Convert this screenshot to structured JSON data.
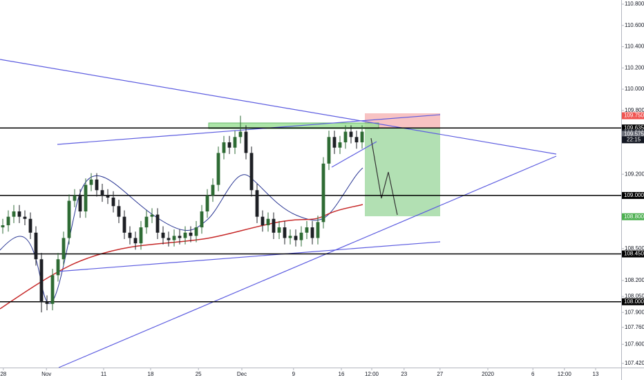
{
  "chart_data": {
    "type": "candlestick",
    "up_color": "#2e6b34",
    "down_color": "#1d1f24",
    "grid": false,
    "xlim": [
      0,
      112.5
    ],
    "ylim": [
      107.381,
      110.839
    ],
    "xticks": [
      {
        "value": 0.6,
        "label": "28"
      },
      {
        "value": 8.4,
        "label": "Nov"
      },
      {
        "value": 18.75,
        "label": "11"
      },
      {
        "value": 27.25,
        "label": "18"
      },
      {
        "value": 35.9,
        "label": "25"
      },
      {
        "value": 43.75,
        "label": "Dec"
      },
      {
        "value": 53.1,
        "label": "9"
      },
      {
        "value": 61.75,
        "label": "16"
      },
      {
        "value": 67.25,
        "label": "12:00"
      },
      {
        "value": 73.1,
        "label": "23"
      },
      {
        "value": 79.6,
        "label": "27"
      },
      {
        "value": 88.25,
        "label": "2020"
      },
      {
        "value": 96.4,
        "label": "6"
      },
      {
        "value": 102.1,
        "label": "12:00"
      },
      {
        "value": 107.75,
        "label": "13"
      }
    ],
    "yticks": [
      {
        "value": 110.8,
        "label": "110.800"
      },
      {
        "value": 110.6,
        "label": "110.600"
      },
      {
        "value": 110.4,
        "label": "110.400"
      },
      {
        "value": 110.2,
        "label": "110.200"
      },
      {
        "value": 110.0,
        "label": "110.000"
      },
      {
        "value": 109.8,
        "label": "109.800"
      },
      {
        "value": 109.2,
        "label": "109.200"
      },
      {
        "value": 108.5,
        "label": "108.500"
      },
      {
        "value": 108.2,
        "label": "108.200"
      },
      {
        "value": 108.05,
        "label": "108.050"
      },
      {
        "value": 107.9,
        "label": "107.900"
      },
      {
        "value": 107.76,
        "label": "107.760"
      },
      {
        "value": 107.6,
        "label": "107.600"
      },
      {
        "value": 107.42,
        "label": "107.420"
      }
    ],
    "price_labels": [
      {
        "value": 109.75,
        "label": "109.750",
        "color": "#ef5350"
      },
      {
        "value": 109.635,
        "label": "109.635",
        "color": "#000000",
        "line": true
      },
      {
        "value": 109.589,
        "label": "109.589",
        "color": "#131722"
      },
      {
        "value": 109.575,
        "label": "109.575",
        "color": "#6b6e78"
      },
      {
        "value": 109.0,
        "label": "109.000",
        "color": "#000000",
        "line": true
      },
      {
        "value": 108.8,
        "label": "108.800",
        "color": "#4caf50"
      },
      {
        "value": 108.45,
        "label": "108.450",
        "color": "#000000",
        "line": true
      },
      {
        "value": 108.0,
        "label": "108.000",
        "color": "#000000",
        "line": true
      }
    ],
    "countdown": "22:15",
    "open": [
      108.7,
      108.72,
      108.8,
      108.85,
      108.8,
      108.78,
      108.65,
      108.4,
      108.0,
      107.98,
      108.25,
      108.4,
      108.6,
      108.95,
      109.0,
      108.85,
      109.1,
      109.15,
      109.05,
      109.0,
      108.98,
      108.9,
      108.8,
      108.65,
      108.6,
      108.55,
      108.7,
      108.8,
      108.82,
      108.65,
      108.6,
      108.58,
      108.62,
      108.6,
      108.65,
      108.62,
      108.7,
      108.85,
      109.0,
      109.1,
      109.4,
      109.5,
      109.45,
      109.55,
      109.6,
      109.4,
      109.05,
      108.8,
      108.72,
      108.78,
      108.65,
      108.7,
      108.6,
      108.62,
      108.58,
      108.65,
      108.7,
      108.6,
      108.75,
      109.3,
      109.55,
      109.45,
      109.5,
      109.6,
      109.55,
      109.5
    ],
    "high": [
      108.78,
      108.86,
      108.91,
      108.91,
      108.86,
      108.84,
      108.71,
      108.46,
      108.06,
      108.31,
      108.46,
      108.66,
      109.01,
      109.06,
      109.06,
      109.16,
      109.21,
      109.21,
      109.11,
      109.06,
      109.04,
      108.96,
      108.86,
      108.71,
      108.66,
      108.76,
      108.86,
      108.88,
      108.88,
      108.71,
      108.66,
      108.68,
      108.68,
      108.71,
      108.71,
      108.76,
      108.91,
      109.06,
      109.16,
      109.46,
      109.56,
      109.56,
      109.61,
      109.75,
      109.66,
      109.46,
      109.11,
      108.86,
      108.84,
      108.84,
      108.76,
      108.76,
      108.68,
      108.68,
      108.71,
      108.76,
      108.76,
      108.81,
      109.36,
      109.61,
      109.61,
      109.56,
      109.66,
      109.66,
      109.61,
      109.66
    ],
    "low": [
      108.64,
      108.66,
      108.74,
      108.74,
      108.72,
      108.59,
      108.34,
      107.9,
      107.92,
      107.92,
      108.19,
      108.34,
      108.54,
      108.89,
      108.79,
      108.79,
      109.04,
      108.99,
      108.94,
      108.92,
      108.84,
      108.74,
      108.59,
      108.54,
      108.49,
      108.49,
      108.64,
      108.74,
      108.59,
      108.54,
      108.52,
      108.52,
      108.54,
      108.54,
      108.56,
      108.56,
      108.64,
      108.79,
      108.94,
      109.04,
      109.34,
      109.39,
      109.39,
      109.49,
      109.34,
      108.99,
      108.74,
      108.66,
      108.66,
      108.59,
      108.59,
      108.54,
      108.54,
      108.52,
      108.52,
      108.59,
      108.54,
      108.54,
      108.69,
      109.24,
      109.39,
      109.39,
      109.44,
      109.49,
      109.44,
      109.44
    ],
    "close": [
      108.72,
      108.8,
      108.85,
      108.8,
      108.78,
      108.65,
      108.4,
      108.0,
      107.98,
      108.25,
      108.4,
      108.6,
      108.95,
      109.0,
      108.85,
      109.1,
      109.15,
      109.05,
      109.0,
      108.98,
      108.9,
      108.8,
      108.65,
      108.6,
      108.55,
      108.7,
      108.8,
      108.82,
      108.65,
      108.6,
      108.58,
      108.62,
      108.6,
      108.65,
      108.62,
      108.7,
      108.85,
      109.0,
      109.1,
      109.4,
      109.5,
      109.45,
      109.55,
      109.6,
      109.4,
      109.05,
      108.8,
      108.72,
      108.78,
      108.65,
      108.7,
      108.6,
      108.62,
      108.58,
      108.65,
      108.7,
      108.6,
      108.75,
      109.3,
      109.55,
      109.45,
      109.5,
      109.6,
      109.55,
      109.5,
      109.6
    ]
  }
}
